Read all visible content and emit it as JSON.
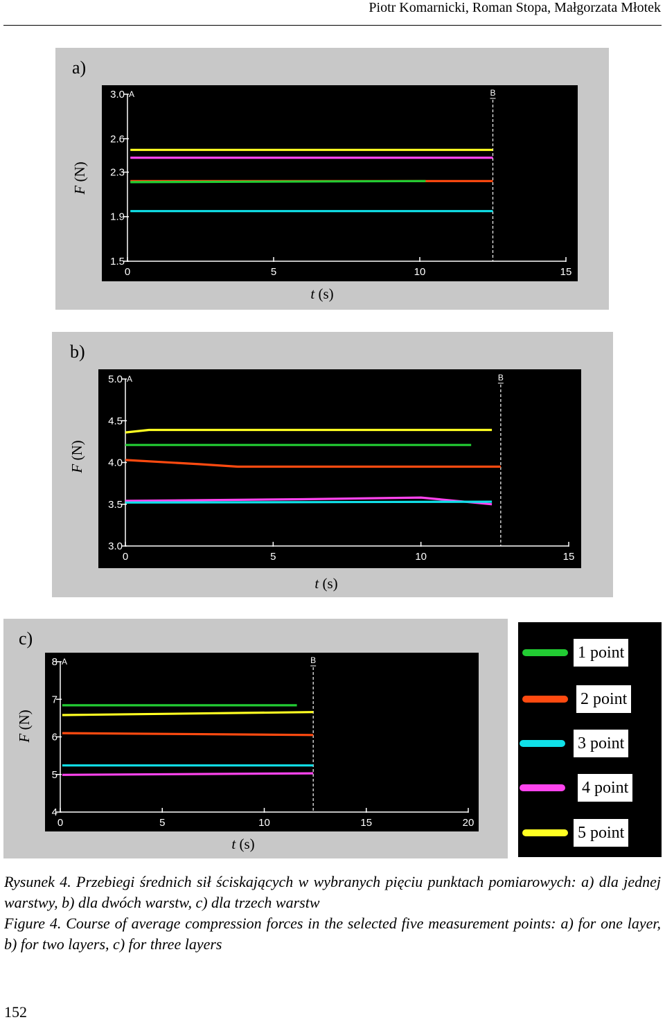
{
  "header": {
    "authors": "Piotr Komarnicki, Roman Stopa, Małgorzata Młotek"
  },
  "colors": {
    "point1": "#22cc33",
    "point2": "#ff4a10",
    "point3": "#10e0e8",
    "point4": "#ff44ee",
    "point5": "#ffff22",
    "plot_background": "#000000",
    "panel_background": "#c8c8c8"
  },
  "chart_data": [
    {
      "panel_label": "a)",
      "type": "line",
      "xlabel_var": "t",
      "xlabel_unit": "(s)",
      "ylabel_var": "F",
      "ylabel_unit": "(N)",
      "xlim": [
        0,
        15
      ],
      "ylim": [
        1.5,
        3.0
      ],
      "xticks": [
        0,
        5,
        10,
        15
      ],
      "xtick_labels": [
        "0",
        "5",
        "10",
        "15"
      ],
      "yticks": [
        3.0,
        2.6,
        2.3,
        1.9,
        1.5
      ],
      "ytick_labels": [
        "3.0",
        "2.6",
        "2.3",
        "1.9",
        "1.5"
      ],
      "marker_a": {
        "label": "A",
        "x": 0
      },
      "marker_b": {
        "label": "B",
        "x": 12.5
      },
      "series": [
        {
          "name": "5 point",
          "color": "#ffff22",
          "x": [
            0.1,
            12.5
          ],
          "y": [
            2.5,
            2.5
          ]
        },
        {
          "name": "4 point",
          "color": "#ff44ee",
          "x": [
            0.1,
            12.5
          ],
          "y": [
            2.43,
            2.43
          ]
        },
        {
          "name": "2 point",
          "color": "#ff4a10",
          "x": [
            0.1,
            12.5
          ],
          "y": [
            2.22,
            2.22
          ]
        },
        {
          "name": "1 point",
          "color": "#22cc33",
          "x": [
            0.1,
            10.2
          ],
          "y": [
            2.21,
            2.22
          ]
        },
        {
          "name": "3 point",
          "color": "#10e0e8",
          "x": [
            0.1,
            12.5
          ],
          "y": [
            1.95,
            1.95
          ]
        }
      ]
    },
    {
      "panel_label": "b)",
      "type": "line",
      "xlabel_var": "t",
      "xlabel_unit": "(s)",
      "ylabel_var": "F",
      "ylabel_unit": "(N)",
      "xlim": [
        0,
        15
      ],
      "ylim": [
        3.0,
        5.0
      ],
      "xticks": [
        0,
        5,
        10,
        15
      ],
      "xtick_labels": [
        "0",
        "5",
        "10",
        "15"
      ],
      "yticks": [
        5.0,
        4.5,
        4.0,
        3.5,
        3.0
      ],
      "ytick_labels": [
        "5.0",
        "4.5",
        "4.0",
        "3.5",
        "3.0"
      ],
      "marker_a": {
        "label": "A",
        "x": 0
      },
      "marker_b": {
        "label": "B",
        "x": 12.7
      },
      "series": [
        {
          "name": "5 point",
          "color": "#ffff22",
          "x": [
            0.0,
            0.8,
            12.4
          ],
          "y": [
            4.36,
            4.39,
            4.39
          ]
        },
        {
          "name": "1 point",
          "color": "#22cc33",
          "x": [
            0.0,
            11.7
          ],
          "y": [
            4.21,
            4.21
          ]
        },
        {
          "name": "2 point",
          "color": "#ff4a10",
          "x": [
            0.0,
            2.5,
            3.8,
            12.7
          ],
          "y": [
            4.03,
            3.98,
            3.95,
            3.95
          ]
        },
        {
          "name": "4 point",
          "color": "#ff44ee",
          "x": [
            0.0,
            6.0,
            10.0,
            12.4
          ],
          "y": [
            3.54,
            3.56,
            3.58,
            3.5
          ]
        },
        {
          "name": "3 point",
          "color": "#10e0e8",
          "x": [
            0.0,
            12.4
          ],
          "y": [
            3.52,
            3.53
          ]
        }
      ]
    },
    {
      "panel_label": "c)",
      "type": "line",
      "xlabel_var": "t",
      "xlabel_unit": "(s)",
      "ylabel_var": "F",
      "ylabel_unit": "(N)",
      "xlim": [
        0,
        20
      ],
      "ylim": [
        4,
        8
      ],
      "xticks": [
        0,
        5,
        10,
        15,
        20
      ],
      "xtick_labels": [
        "0",
        "5",
        "10",
        "15",
        "20"
      ],
      "yticks": [
        8,
        7,
        6,
        5,
        4
      ],
      "ytick_labels": [
        "8",
        "7",
        "6",
        "5",
        "4"
      ],
      "marker_a": {
        "label": "A",
        "x": 0
      },
      "marker_b": {
        "label": "B",
        "x": 12.4
      },
      "series": [
        {
          "name": "1 point",
          "color": "#22cc33",
          "x": [
            0.1,
            11.6
          ],
          "y": [
            6.84,
            6.84
          ]
        },
        {
          "name": "5 point",
          "color": "#ffff22",
          "x": [
            0.1,
            12.4
          ],
          "y": [
            6.58,
            6.66
          ]
        },
        {
          "name": "2 point",
          "color": "#ff4a10",
          "x": [
            0.1,
            12.4
          ],
          "y": [
            6.1,
            6.05
          ]
        },
        {
          "name": "3 point",
          "color": "#10e0e8",
          "x": [
            0.1,
            12.4
          ],
          "y": [
            5.24,
            5.24
          ]
        },
        {
          "name": "4 point",
          "color": "#ff44ee",
          "x": [
            0.1,
            12.4
          ],
          "y": [
            4.99,
            5.03
          ]
        }
      ]
    }
  ],
  "legend": [
    {
      "label": "1 point",
      "color": "#22cc33"
    },
    {
      "label": "2 point",
      "color": "#ff4a10"
    },
    {
      "label": "3 point",
      "color": "#10e0e8"
    },
    {
      "label": "4 point",
      "color": "#ff44ee"
    },
    {
      "label": "5 point",
      "color": "#ffff22"
    }
  ],
  "caption": {
    "pl": "Rysunek 4. Przebiegi średnich sił ściskających w wybranych pięciu punktach pomiarowych: a) dla jednej warstwy, b) dla dwóch warstw, c) dla trzech warstw",
    "en": "Figure 4. Course of average compression forces in the selected five measurement points: a) for one layer, b) for two layers, c) for three layers"
  },
  "page_number": "152"
}
